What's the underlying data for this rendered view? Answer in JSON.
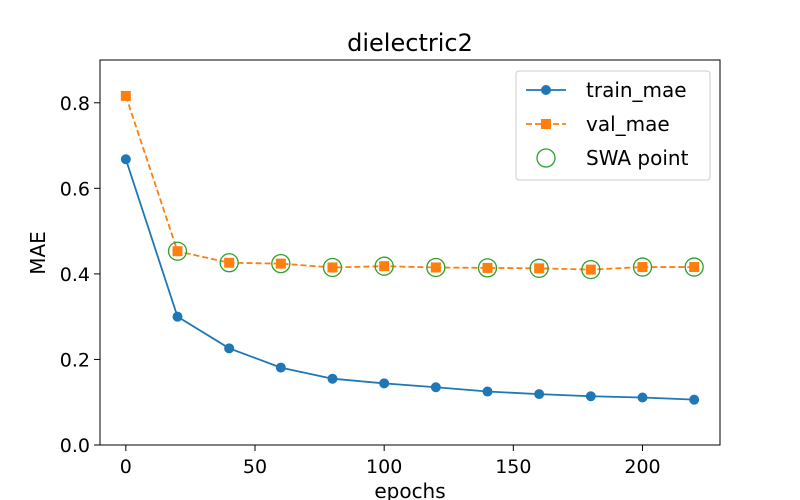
{
  "chart_data": {
    "type": "line",
    "title": "dielectric2",
    "xlabel": "epochs",
    "ylabel": "MAE",
    "xlim": [
      -10,
      230
    ],
    "ylim": [
      0,
      0.9
    ],
    "xticks": [
      0,
      50,
      100,
      150,
      200
    ],
    "yticks": [
      0.0,
      0.2,
      0.4,
      0.6,
      0.8
    ],
    "xtick_labels": [
      "0",
      "50",
      "100",
      "150",
      "200"
    ],
    "ytick_labels": [
      "0.0",
      "0.2",
      "0.4",
      "0.6",
      "0.8"
    ],
    "grid": false,
    "legend_position": "top-right",
    "series": [
      {
        "name": "train_mae",
        "style": "solid",
        "marker": "circle",
        "color": "#1f77b4",
        "x": [
          0,
          20,
          40,
          60,
          80,
          100,
          120,
          140,
          160,
          180,
          200,
          220
        ],
        "y": [
          0.668,
          0.3,
          0.226,
          0.181,
          0.155,
          0.144,
          0.135,
          0.125,
          0.119,
          0.114,
          0.111,
          0.106
        ]
      },
      {
        "name": "val_mae",
        "style": "dashed",
        "marker": "square",
        "color": "#ff7f0e",
        "x": [
          0,
          20,
          40,
          60,
          80,
          100,
          120,
          140,
          160,
          180,
          200,
          220
        ],
        "y": [
          0.816,
          0.453,
          0.426,
          0.424,
          0.415,
          0.418,
          0.415,
          0.414,
          0.413,
          0.41,
          0.416,
          0.416
        ]
      },
      {
        "name": "SWA point",
        "style": "none",
        "marker": "hollow-circle",
        "color": "#2ca02c",
        "x": [
          20,
          40,
          60,
          80,
          100,
          120,
          140,
          160,
          180,
          200,
          220
        ],
        "y": [
          0.453,
          0.426,
          0.424,
          0.415,
          0.418,
          0.415,
          0.414,
          0.413,
          0.41,
          0.416,
          0.416
        ]
      }
    ]
  }
}
